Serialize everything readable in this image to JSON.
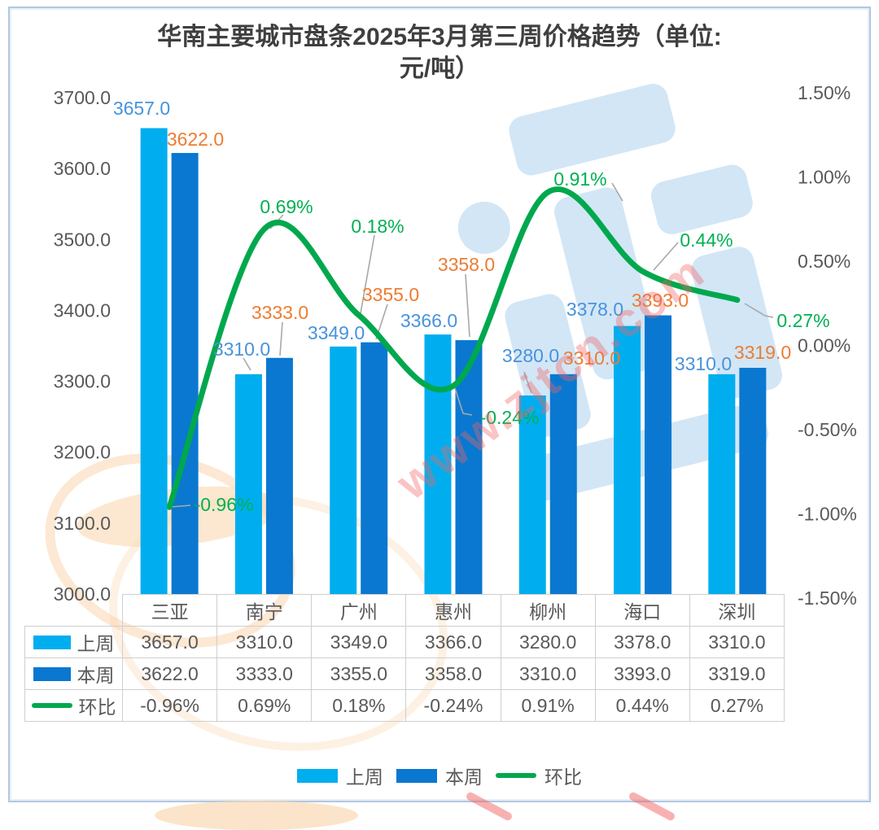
{
  "title": {
    "line1": "华南主要城市盘条2025年3月第三周价格趋势（单位:",
    "line2": "元/吨）"
  },
  "watermark": {
    "url_text": "www.zjtcn.com"
  },
  "colors": {
    "last_week": "#00AEEF",
    "this_week": "#0A78D0",
    "ratio_line": "#00A84D",
    "label_last_week": "#4893DB",
    "label_this_week": "#ED7D31",
    "label_ratio": "#00B052",
    "axis_text": "#595959",
    "leader_line": "#A8A8A8",
    "table_border": "#CFCFCF",
    "frame_border": "#B3C7E2"
  },
  "chart_data": {
    "type": "bar+line",
    "title": "华南主要城市盘条2025年3月第三周价格趋势（单位: 元/吨）",
    "categories": [
      "三亚",
      "南宁",
      "广州",
      "惠州",
      "柳州",
      "海口",
      "深圳"
    ],
    "series": [
      {
        "name": "上周",
        "type": "bar",
        "axis": "left",
        "values": [
          3657.0,
          3310.0,
          3349.0,
          3366.0,
          3280.0,
          3378.0,
          3310.0
        ],
        "labels": [
          "3657.0",
          "3310.0",
          "3349.0",
          "3366.0",
          "3280.0",
          "3378.0",
          "3310.0"
        ]
      },
      {
        "name": "本周",
        "type": "bar",
        "axis": "left",
        "values": [
          3622.0,
          3333.0,
          3355.0,
          3358.0,
          3310.0,
          3393.0,
          3319.0
        ],
        "labels": [
          "3622.0",
          "3333.0",
          "3355.0",
          "3358.0",
          "3310.0",
          "3393.0",
          "3319.0"
        ]
      },
      {
        "name": "环比",
        "type": "line",
        "axis": "right",
        "values": [
          -0.96,
          0.69,
          0.18,
          -0.24,
          0.91,
          0.44,
          0.27
        ],
        "labels": [
          "-0.96%",
          "0.69%",
          "0.18%",
          "-0.24%",
          "0.91%",
          "0.44%",
          "0.27%"
        ]
      }
    ],
    "left_axis": {
      "min": 3000,
      "max": 3700,
      "step": 100,
      "tick_labels": [
        "3700.0",
        "3600.0",
        "3500.0",
        "3400.0",
        "3300.0",
        "3200.0",
        "3100.0",
        "3000.0"
      ]
    },
    "right_axis": {
      "min": -1.5,
      "max": 1.5,
      "step": 0.5,
      "tick_labels": [
        "1.50%",
        "1.00%",
        "0.50%",
        "0.00%",
        "-0.50%",
        "-1.00%",
        "-1.50%"
      ]
    },
    "legend_position": "bottom",
    "grid": false
  },
  "table": {
    "columns": [
      "三亚",
      "南宁",
      "广州",
      "惠州",
      "柳州",
      "海口",
      "深圳"
    ],
    "rows": [
      {
        "header": "上周",
        "cells": [
          "3657.0",
          "3310.0",
          "3349.0",
          "3366.0",
          "3280.0",
          "3378.0",
          "3310.0"
        ]
      },
      {
        "header": "本周",
        "cells": [
          "3622.0",
          "3333.0",
          "3355.0",
          "3358.0",
          "3310.0",
          "3393.0",
          "3319.0"
        ]
      },
      {
        "header": "环比",
        "cells": [
          "-0.96%",
          "0.69%",
          "0.18%",
          "-0.24%",
          "0.91%",
          "0.44%",
          "0.27%"
        ]
      }
    ]
  },
  "legend": {
    "items": [
      "上周",
      "本周",
      "环比"
    ]
  }
}
